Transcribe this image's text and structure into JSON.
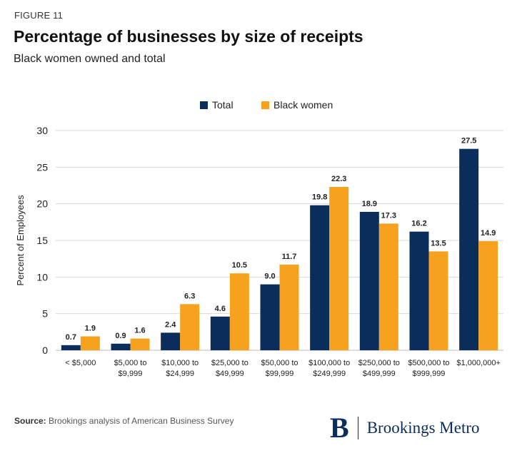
{
  "figure_label": "FIGURE 11",
  "title": "Percentage of businesses by size of receipts",
  "subtitle": "Black women owned and total",
  "source_label": "Source:",
  "source_text": "Brookings analysis of American Business Survey",
  "logo": {
    "mark": "B",
    "text": "Brookings Metro"
  },
  "colors": {
    "total": "#0b2d5b",
    "black_women": "#f6a21e",
    "grid": "#d9d9d9",
    "axis_text": "#222222"
  },
  "chart_data": {
    "type": "bar",
    "categories": [
      [
        "< $5,000"
      ],
      [
        "$5,000 to",
        "$9,999"
      ],
      [
        "$10,000 to",
        "$24,999"
      ],
      [
        "$25,000 to",
        "$49,999"
      ],
      [
        "$50,000 to",
        "$99,999"
      ],
      [
        "$100,000 to",
        "$249,999"
      ],
      [
        "$250,000 to",
        "$499,999"
      ],
      [
        "$500,000 to",
        "$999,999"
      ],
      [
        "$1,000,000+"
      ]
    ],
    "series": [
      {
        "name": "Total",
        "values": [
          0.7,
          0.9,
          2.4,
          4.6,
          9.0,
          19.8,
          18.9,
          16.2,
          27.5
        ],
        "labels": [
          "0.7",
          "0.9",
          "2.4",
          "4.6",
          "9.0",
          "19.8",
          "18.9",
          "16.2",
          "27.5"
        ]
      },
      {
        "name": "Black women",
        "values": [
          1.9,
          1.6,
          6.3,
          10.5,
          11.7,
          22.3,
          17.3,
          13.5,
          14.9
        ],
        "labels": [
          "1.9",
          "1.6",
          "6.3",
          "10.5",
          "11.7",
          "22.3",
          "17.3",
          "13.5",
          "14.9"
        ]
      }
    ],
    "ylabel": "Percent of Employees",
    "ylim": [
      0,
      30
    ],
    "yticks": [
      0,
      5,
      10,
      15,
      20,
      25,
      30
    ],
    "grid": true,
    "legend": "top-center"
  }
}
